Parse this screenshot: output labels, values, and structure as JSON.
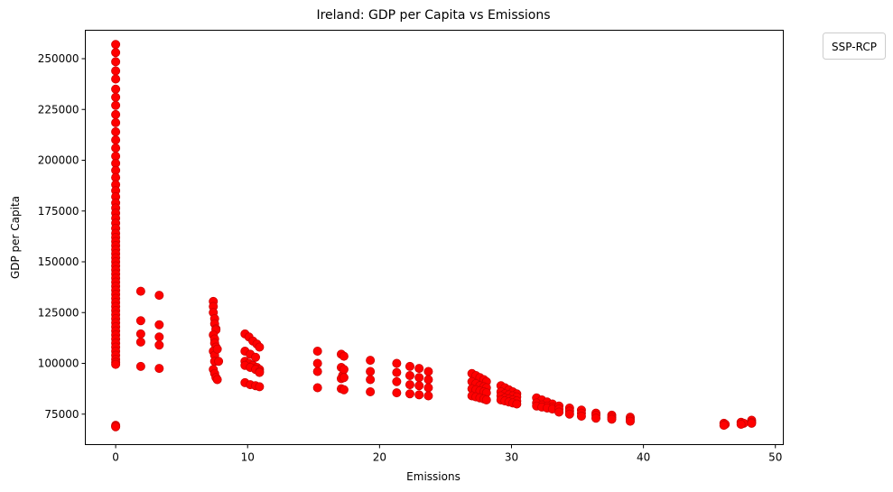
{
  "chart_data": {
    "type": "scatter",
    "title": "Ireland: GDP per Capita vs Emissions",
    "xlabel": "Emissions",
    "ylabel": "GDP per Capita",
    "xlim": [
      -2.3,
      50.6
    ],
    "ylim": [
      60000,
      264000
    ],
    "xticks": [
      0,
      10,
      20,
      30,
      40,
      50
    ],
    "yticks": [
      75000,
      100000,
      125000,
      150000,
      175000,
      200000,
      225000,
      250000
    ],
    "ytick_labels": [
      "75000",
      "100000",
      "125000",
      "150000",
      "175000",
      "200000",
      "225000",
      "250000"
    ],
    "xtick_labels": [
      "0",
      "10",
      "20",
      "30",
      "40",
      "50"
    ],
    "legend": {
      "title": "SSP-RCP",
      "placement": "outside-top-right"
    },
    "grid": false,
    "marker_color": "#ff0000",
    "marker_edge_color": "#cc0000",
    "points": [
      [
        0,
        257000
      ],
      [
        0,
        253000
      ],
      [
        0,
        248500
      ],
      [
        0,
        244000
      ],
      [
        0,
        240000
      ],
      [
        0,
        235000
      ],
      [
        0,
        231000
      ],
      [
        0,
        227000
      ],
      [
        0,
        222500
      ],
      [
        0,
        218500
      ],
      [
        0,
        214000
      ],
      [
        0,
        210000
      ],
      [
        0,
        206000
      ],
      [
        0,
        202000
      ],
      [
        0,
        198500
      ],
      [
        0,
        195000
      ],
      [
        0,
        191500
      ],
      [
        0,
        188000
      ],
      [
        0,
        185000
      ],
      [
        0,
        182000
      ],
      [
        0,
        179000
      ],
      [
        0,
        176500
      ],
      [
        0,
        174000
      ],
      [
        0,
        171500
      ],
      [
        0,
        169000
      ],
      [
        0,
        166500
      ],
      [
        0,
        164000
      ],
      [
        0,
        162000
      ],
      [
        0,
        160000
      ],
      [
        0,
        158000
      ],
      [
        0,
        156000
      ],
      [
        0,
        154000
      ],
      [
        0,
        152000
      ],
      [
        0,
        150000
      ],
      [
        0,
        148000
      ],
      [
        0,
        146000
      ],
      [
        0,
        144000
      ],
      [
        0,
        142000
      ],
      [
        0,
        140000
      ],
      [
        0,
        138000
      ],
      [
        0,
        136000
      ],
      [
        0,
        134000
      ],
      [
        0,
        132000
      ],
      [
        0,
        130000
      ],
      [
        0,
        128000
      ],
      [
        0,
        126000
      ],
      [
        0,
        124000
      ],
      [
        0,
        122000
      ],
      [
        0,
        120000
      ],
      [
        0,
        118000
      ],
      [
        0,
        116000
      ],
      [
        0,
        114000
      ],
      [
        0,
        112000
      ],
      [
        0,
        110000
      ],
      [
        0,
        108000
      ],
      [
        0,
        106000
      ],
      [
        0,
        104000
      ],
      [
        0,
        102000
      ],
      [
        0,
        100500
      ],
      [
        0,
        99500
      ],
      [
        0,
        69500
      ],
      [
        0,
        69000
      ],
      [
        0,
        68800
      ],
      [
        1.9,
        135500
      ],
      [
        1.9,
        121000
      ],
      [
        1.9,
        114500
      ],
      [
        1.9,
        110500
      ],
      [
        1.9,
        98500
      ],
      [
        3.3,
        133500
      ],
      [
        3.3,
        119000
      ],
      [
        3.3,
        113000
      ],
      [
        3.3,
        109000
      ],
      [
        3.3,
        97500
      ],
      [
        7.4,
        130500
      ],
      [
        7.4,
        128000
      ],
      [
        7.4,
        125000
      ],
      [
        7.5,
        122000
      ],
      [
        7.5,
        119500
      ],
      [
        7.6,
        117000
      ],
      [
        7.6,
        116500
      ],
      [
        7.4,
        114000
      ],
      [
        7.5,
        112000
      ],
      [
        7.5,
        110000
      ],
      [
        7.6,
        108000
      ],
      [
        7.4,
        106000
      ],
      [
        7.5,
        104000
      ],
      [
        7.7,
        107000
      ],
      [
        7.5,
        101000
      ],
      [
        7.4,
        97000
      ],
      [
        7.5,
        95000
      ],
      [
        7.6,
        93000
      ],
      [
        7.7,
        92000
      ],
      [
        7.8,
        101000
      ],
      [
        9.8,
        114500
      ],
      [
        10.1,
        113000
      ],
      [
        10.4,
        111000
      ],
      [
        10.7,
        109500
      ],
      [
        10.9,
        108000
      ],
      [
        9.8,
        106000
      ],
      [
        10.2,
        104500
      ],
      [
        10.6,
        103000
      ],
      [
        9.8,
        101000
      ],
      [
        10.1,
        100000
      ],
      [
        10.4,
        99000
      ],
      [
        10.7,
        98000
      ],
      [
        10.9,
        97000
      ],
      [
        9.8,
        99000
      ],
      [
        10.2,
        98000
      ],
      [
        10.6,
        97000
      ],
      [
        10.9,
        96000
      ],
      [
        10.9,
        95500
      ],
      [
        9.8,
        90500
      ],
      [
        10.2,
        89500
      ],
      [
        10.6,
        89000
      ],
      [
        10.9,
        88500
      ],
      [
        15.3,
        106000
      ],
      [
        15.3,
        100000
      ],
      [
        15.3,
        96000
      ],
      [
        15.3,
        88000
      ],
      [
        17.1,
        104500
      ],
      [
        17.1,
        98000
      ],
      [
        17.2,
        94000
      ],
      [
        17.1,
        92500
      ],
      [
        17.1,
        87500
      ],
      [
        17.3,
        103500
      ],
      [
        17.3,
        97000
      ],
      [
        17.3,
        93000
      ],
      [
        17.3,
        87000
      ],
      [
        19.3,
        101500
      ],
      [
        19.3,
        96000
      ],
      [
        19.3,
        92000
      ],
      [
        19.3,
        86000
      ],
      [
        21.3,
        100000
      ],
      [
        21.3,
        95500
      ],
      [
        21.3,
        91000
      ],
      [
        21.3,
        85500
      ],
      [
        22.3,
        98500
      ],
      [
        22.3,
        94000
      ],
      [
        22.3,
        89500
      ],
      [
        22.3,
        85000
      ],
      [
        23.0,
        97500
      ],
      [
        23.0,
        93000
      ],
      [
        23.0,
        89000
      ],
      [
        23.0,
        84500
      ],
      [
        23.7,
        96000
      ],
      [
        23.7,
        92000
      ],
      [
        23.7,
        88000
      ],
      [
        23.7,
        84000
      ],
      [
        27.0,
        95000
      ],
      [
        27.3,
        94000
      ],
      [
        27.6,
        93000
      ],
      [
        27.9,
        92000
      ],
      [
        28.1,
        91000
      ],
      [
        27.0,
        91000
      ],
      [
        27.3,
        90000
      ],
      [
        27.6,
        89000
      ],
      [
        27.9,
        88500
      ],
      [
        28.1,
        88000
      ],
      [
        27.0,
        87500
      ],
      [
        27.3,
        87000
      ],
      [
        27.6,
        86500
      ],
      [
        27.9,
        86000
      ],
      [
        28.1,
        85500
      ],
      [
        27.0,
        84000
      ],
      [
        27.3,
        83500
      ],
      [
        27.6,
        83000
      ],
      [
        27.9,
        82500
      ],
      [
        28.1,
        82000
      ],
      [
        29.2,
        89000
      ],
      [
        29.5,
        88000
      ],
      [
        29.8,
        87000
      ],
      [
        30.1,
        86000
      ],
      [
        30.4,
        85000
      ],
      [
        29.2,
        86000
      ],
      [
        29.5,
        85000
      ],
      [
        29.8,
        84500
      ],
      [
        30.1,
        84000
      ],
      [
        30.4,
        83500
      ],
      [
        29.2,
        84000
      ],
      [
        29.5,
        83000
      ],
      [
        29.8,
        82500
      ],
      [
        30.1,
        82000
      ],
      [
        30.4,
        81500
      ],
      [
        29.2,
        82000
      ],
      [
        29.5,
        81500
      ],
      [
        29.8,
        81000
      ],
      [
        30.1,
        80500
      ],
      [
        30.4,
        80000
      ],
      [
        31.9,
        83000
      ],
      [
        32.3,
        82000
      ],
      [
        32.7,
        81000
      ],
      [
        33.1,
        80000
      ],
      [
        31.9,
        80500
      ],
      [
        32.3,
        79500
      ],
      [
        32.7,
        79000
      ],
      [
        33.1,
        78500
      ],
      [
        31.9,
        79000
      ],
      [
        32.3,
        78500
      ],
      [
        32.7,
        78000
      ],
      [
        33.1,
        77500
      ],
      [
        33.6,
        79000
      ],
      [
        34.4,
        78000
      ],
      [
        35.3,
        77000
      ],
      [
        36.4,
        75500
      ],
      [
        37.6,
        74500
      ],
      [
        39.0,
        73500
      ],
      [
        33.6,
        77500
      ],
      [
        34.4,
        76500
      ],
      [
        35.3,
        75500
      ],
      [
        36.4,
        74500
      ],
      [
        37.6,
        73500
      ],
      [
        39.0,
        72500
      ],
      [
        33.6,
        76000
      ],
      [
        34.4,
        75000
      ],
      [
        35.3,
        74000
      ],
      [
        36.4,
        73000
      ],
      [
        37.6,
        72500
      ],
      [
        39.0,
        71500
      ],
      [
        46.1,
        70500
      ],
      [
        46.2,
        70000
      ],
      [
        46.1,
        69500
      ],
      [
        47.4,
        71000
      ],
      [
        47.6,
        70500
      ],
      [
        47.4,
        70000
      ],
      [
        48.2,
        72000
      ],
      [
        48.2,
        71000
      ],
      [
        48.2,
        70500
      ]
    ]
  }
}
